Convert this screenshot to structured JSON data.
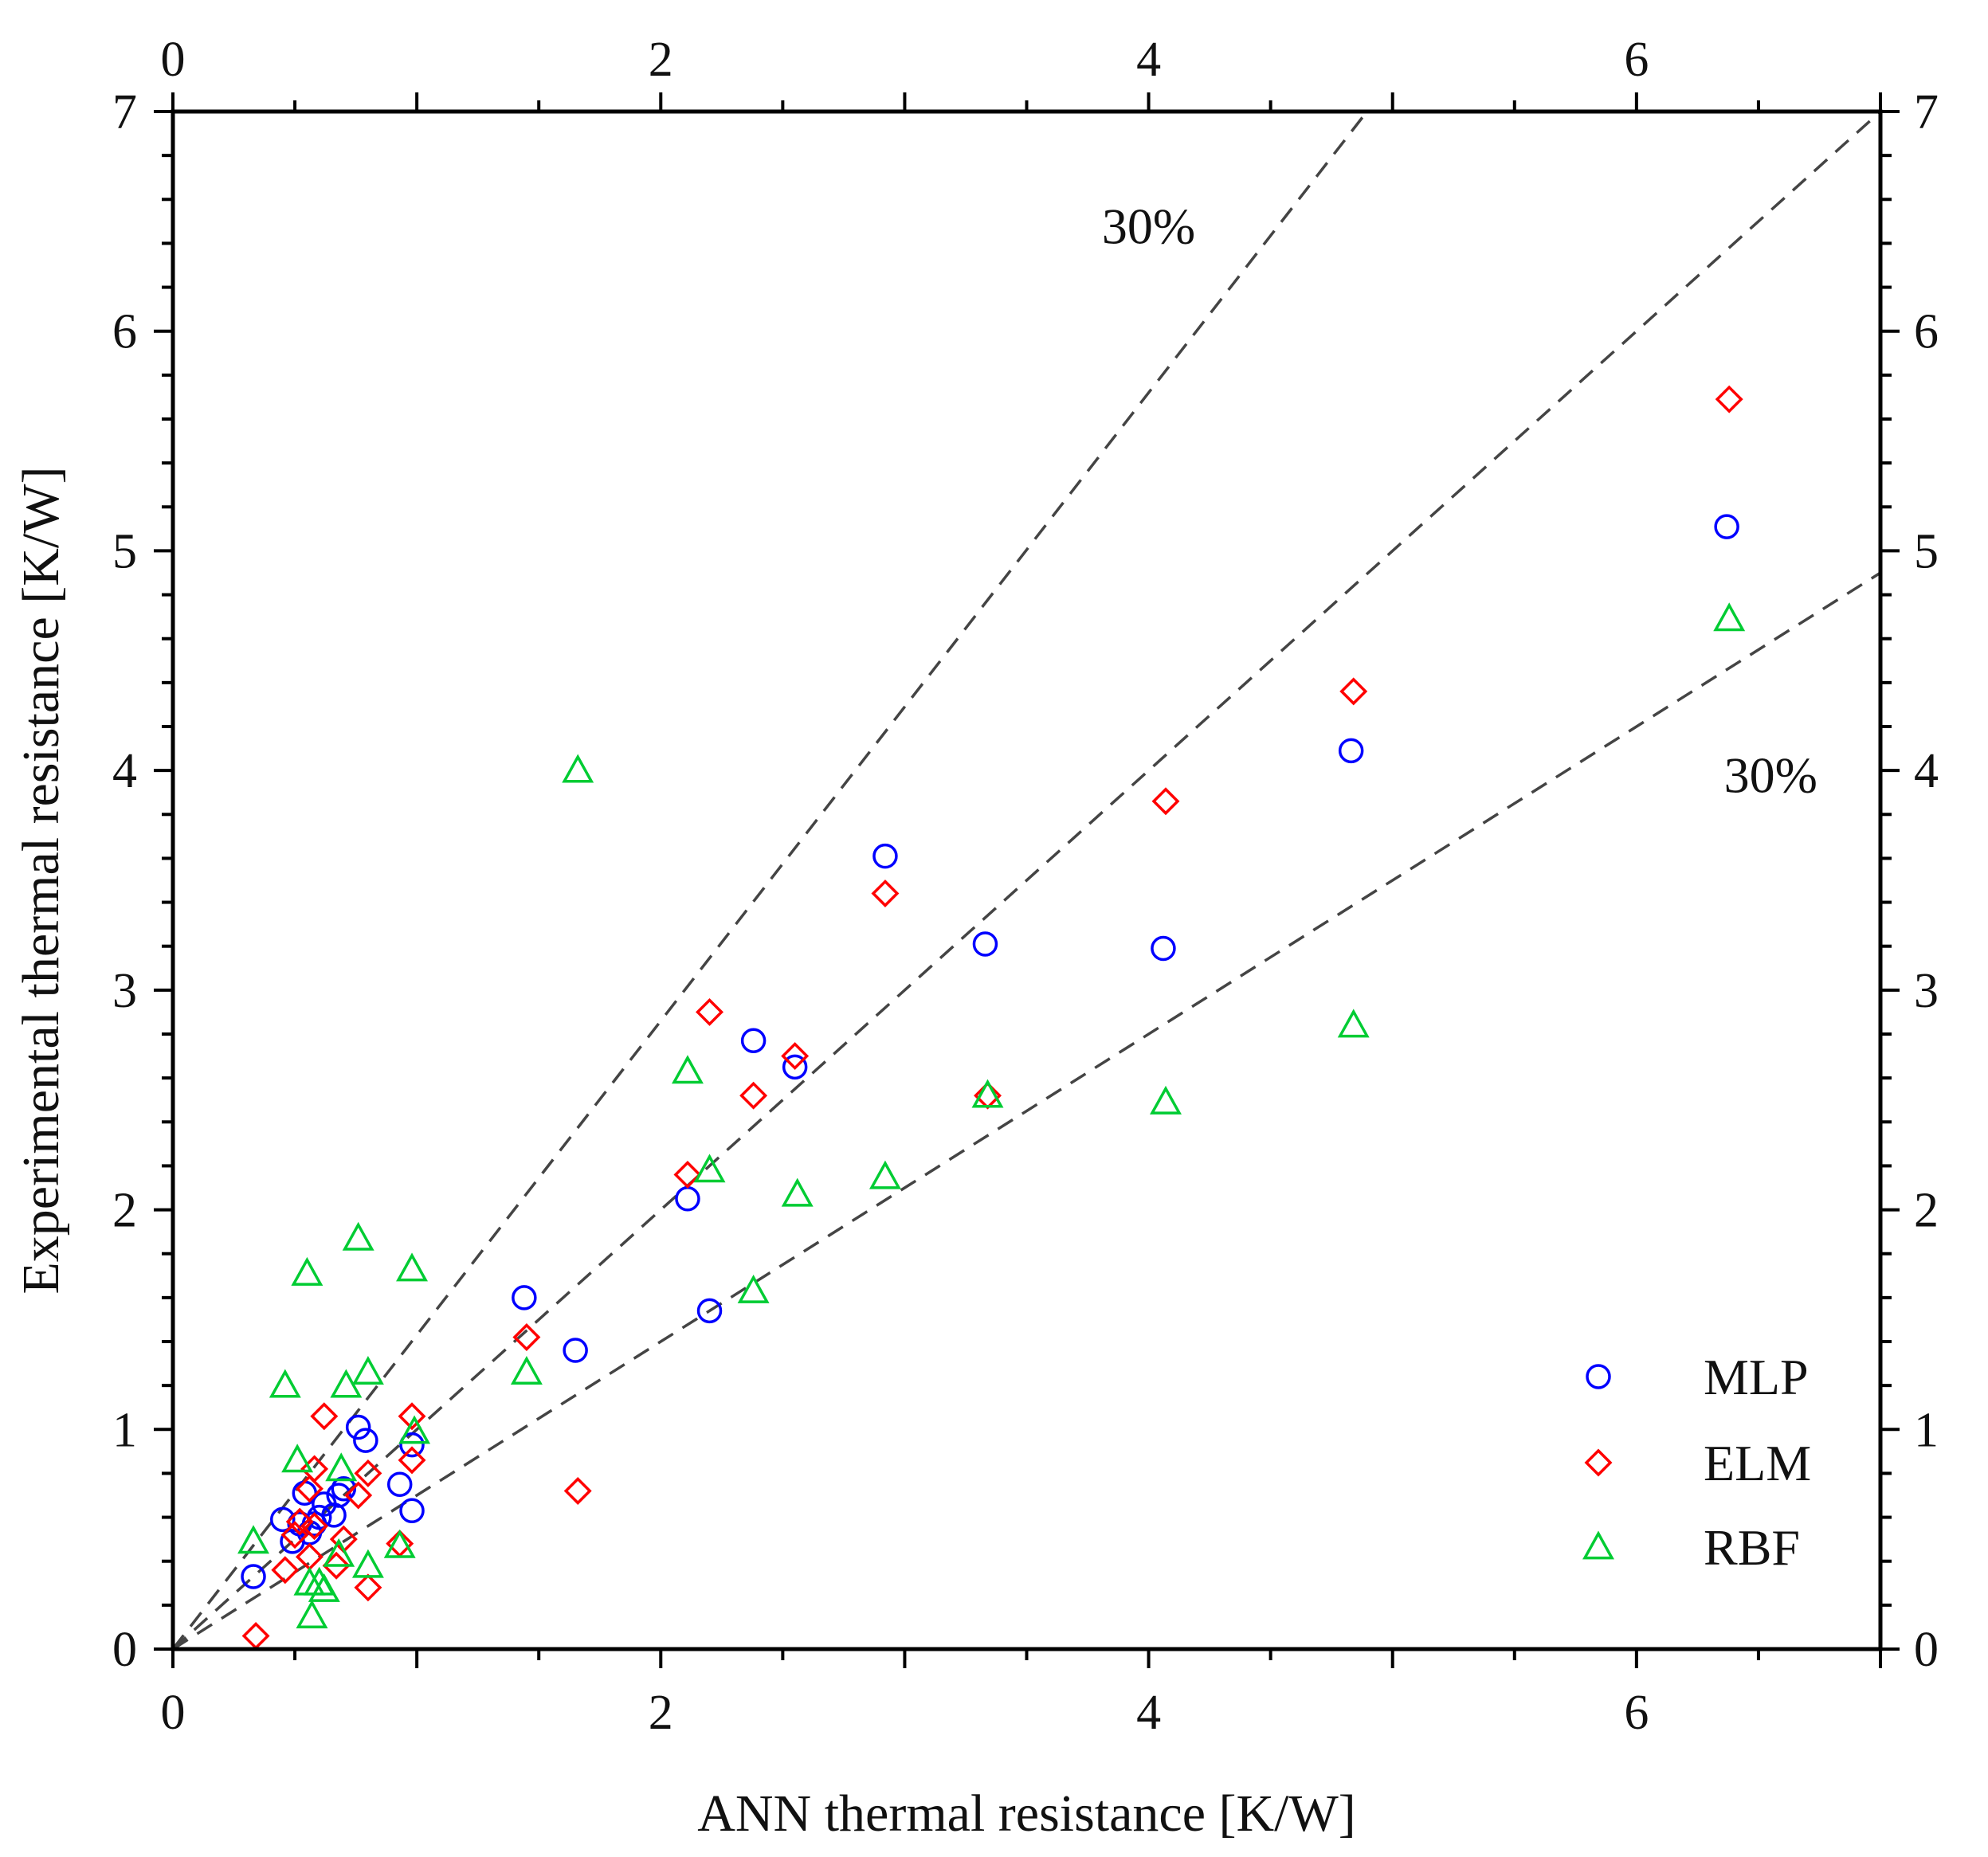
{
  "chart_data": {
    "type": "scatter",
    "title": "",
    "xlabel": "ANN thermal resistance [K/W]",
    "ylabel": "Experimental thermal resistance [K/W]",
    "xlim": [
      0,
      7
    ],
    "ylim": [
      0,
      7
    ],
    "x_ticks": [
      0,
      2,
      4,
      6
    ],
    "y_ticks": [
      0,
      1,
      2,
      3,
      4,
      5,
      6,
      7
    ],
    "x_tick_labels": [
      "0",
      "2",
      "4",
      "6"
    ],
    "y_tick_labels": [
      "0",
      "1",
      "2",
      "3",
      "4",
      "5",
      "6",
      "7"
    ],
    "legend_position": "bottom-right",
    "grid": false,
    "reference_lines": [
      {
        "name": "perfect-agreement",
        "slope": 1.0
      },
      {
        "name": "plus-30-percent",
        "slope": 1.43,
        "label": "30%"
      },
      {
        "name": "minus-30-percent",
        "slope": 0.7,
        "label": "30%"
      }
    ],
    "series": [
      {
        "name": "MLP",
        "marker": "circle",
        "color": "#0000ff",
        "points": [
          [
            0.33,
            0.33
          ],
          [
            0.45,
            0.59
          ],
          [
            0.49,
            0.49
          ],
          [
            0.52,
            0.57
          ],
          [
            0.54,
            0.71
          ],
          [
            0.56,
            0.53
          ],
          [
            0.58,
            0.57
          ],
          [
            0.6,
            0.6
          ],
          [
            0.62,
            0.66
          ],
          [
            0.66,
            0.61
          ],
          [
            0.68,
            0.7
          ],
          [
            0.7,
            0.73
          ],
          [
            0.76,
            1.01
          ],
          [
            0.79,
            0.95
          ],
          [
            0.93,
            0.75
          ],
          [
            0.98,
            0.63
          ],
          [
            0.98,
            0.93
          ],
          [
            1.44,
            1.6
          ],
          [
            1.65,
            1.36
          ],
          [
            2.11,
            2.05
          ],
          [
            2.2,
            1.54
          ],
          [
            2.38,
            2.77
          ],
          [
            2.55,
            2.65
          ],
          [
            2.92,
            3.61
          ],
          [
            3.33,
            3.21
          ],
          [
            4.06,
            3.19
          ],
          [
            4.83,
            4.09
          ],
          [
            6.37,
            5.11
          ]
        ]
      },
      {
        "name": "ELM",
        "marker": "diamond",
        "color": "#ff0000",
        "points": [
          [
            0.34,
            0.06
          ],
          [
            0.46,
            0.36
          ],
          [
            0.5,
            0.52
          ],
          [
            0.52,
            0.58
          ],
          [
            0.56,
            0.42
          ],
          [
            0.56,
            0.73
          ],
          [
            0.58,
            0.56
          ],
          [
            0.58,
            0.82
          ],
          [
            0.62,
            1.06
          ],
          [
            0.67,
            0.38
          ],
          [
            0.7,
            0.5
          ],
          [
            0.76,
            0.7
          ],
          [
            0.8,
            0.28
          ],
          [
            0.8,
            0.8
          ],
          [
            0.93,
            0.48
          ],
          [
            0.98,
            0.86
          ],
          [
            0.98,
            1.06
          ],
          [
            1.45,
            1.42
          ],
          [
            1.66,
            0.72
          ],
          [
            2.11,
            2.16
          ],
          [
            2.2,
            2.9
          ],
          [
            2.38,
            2.52
          ],
          [
            2.55,
            2.7
          ],
          [
            2.92,
            3.44
          ],
          [
            3.34,
            2.52
          ],
          [
            4.07,
            3.86
          ],
          [
            4.84,
            4.36
          ],
          [
            6.38,
            5.69
          ]
        ]
      },
      {
        "name": "RBF",
        "marker": "triangle",
        "color": "#00cc33",
        "points": [
          [
            0.33,
            0.49
          ],
          [
            0.46,
            1.2
          ],
          [
            0.51,
            0.86
          ],
          [
            0.55,
            1.71
          ],
          [
            0.56,
            0.3
          ],
          [
            0.57,
            0.15
          ],
          [
            0.6,
            0.3
          ],
          [
            0.62,
            0.27
          ],
          [
            0.68,
            0.43
          ],
          [
            0.69,
            0.82
          ],
          [
            0.71,
            1.2
          ],
          [
            0.76,
            1.87
          ],
          [
            0.8,
            1.26
          ],
          [
            0.8,
            0.38
          ],
          [
            0.93,
            0.47
          ],
          [
            0.98,
            1.73
          ],
          [
            0.99,
            0.99
          ],
          [
            1.45,
            1.26
          ],
          [
            1.66,
            4.0
          ],
          [
            2.11,
            2.63
          ],
          [
            2.2,
            2.18
          ],
          [
            2.38,
            1.63
          ],
          [
            2.56,
            2.07
          ],
          [
            2.92,
            2.15
          ],
          [
            3.34,
            2.52
          ],
          [
            4.07,
            2.49
          ],
          [
            4.84,
            2.84
          ],
          [
            6.38,
            4.69
          ]
        ]
      }
    ]
  }
}
